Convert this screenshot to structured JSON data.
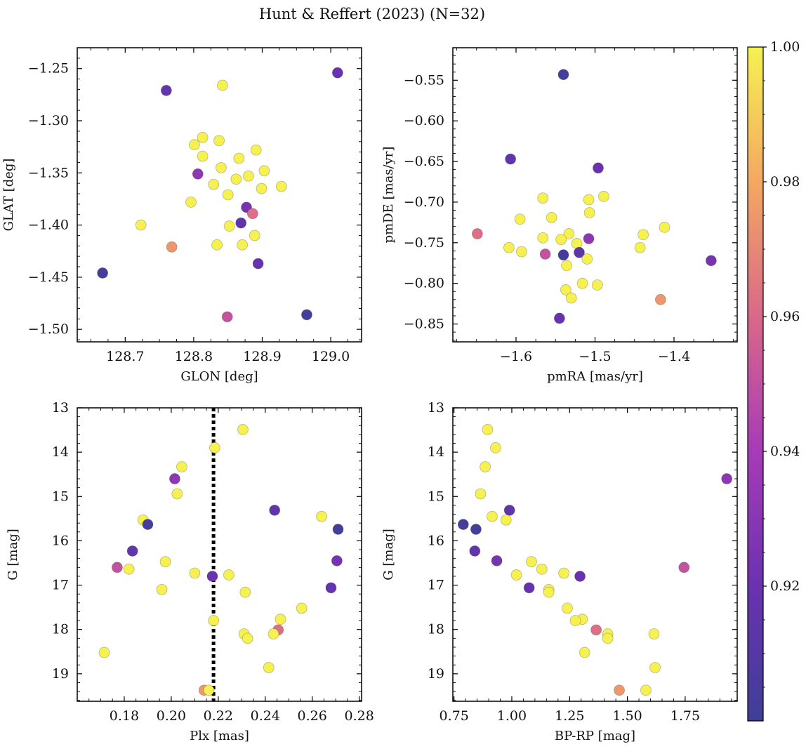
{
  "figure_title": "Hunt & Reffert (2023) (N=32)",
  "chart_data": [
    {
      "type": "scatter",
      "panel": "top-left",
      "xlabel": "GLON [deg]",
      "ylabel": "GLAT [deg]",
      "xlim": [
        128.63,
        129.045
      ],
      "ylim": [
        -1.512,
        -1.23
      ],
      "invert_y": false,
      "xticks": [
        128.7,
        128.8,
        128.9,
        129.0
      ],
      "xticklabels": [
        "128.7",
        "128.8",
        "128.9",
        "129.0"
      ],
      "xminor": [
        128.65,
        128.675,
        128.725,
        128.75,
        128.775,
        128.825,
        128.85,
        128.875,
        128.925,
        128.95,
        128.975,
        129.025
      ],
      "yticks": [
        -1.25,
        -1.3,
        -1.35,
        -1.4,
        -1.45,
        -1.5
      ],
      "yticklabels": [
        "−1.25",
        "−1.30",
        "−1.35",
        "−1.40",
        "−1.45",
        "−1.50"
      ],
      "yminor": [
        -1.24,
        -1.26,
        -1.27,
        -1.28,
        -1.29,
        -1.31,
        -1.32,
        -1.33,
        -1.34,
        -1.36,
        -1.37,
        -1.38,
        -1.39,
        -1.41,
        -1.42,
        -1.43,
        -1.44,
        -1.46,
        -1.47,
        -1.48,
        -1.49,
        -1.51
      ],
      "points": [
        {
          "x": 128.667,
          "y": -1.446,
          "c": 0.902
        },
        {
          "x": 128.76,
          "y": -1.271,
          "c": 0.916
        },
        {
          "x": 129.01,
          "y": -1.254,
          "c": 0.92
        },
        {
          "x": 128.965,
          "y": -1.486,
          "c": 0.903
        },
        {
          "x": 128.723,
          "y": -1.4,
          "c": 1.0
        },
        {
          "x": 128.768,
          "y": -1.421,
          "c": 0.975
        },
        {
          "x": 128.842,
          "y": -1.266,
          "c": 1.0
        },
        {
          "x": 128.813,
          "y": -1.316,
          "c": 1.0
        },
        {
          "x": 128.801,
          "y": -1.323,
          "c": 1.0
        },
        {
          "x": 128.837,
          "y": -1.319,
          "c": 1.0
        },
        {
          "x": 128.813,
          "y": -1.334,
          "c": 1.0
        },
        {
          "x": 128.806,
          "y": -1.351,
          "c": 0.932
        },
        {
          "x": 128.84,
          "y": -1.345,
          "c": 1.0
        },
        {
          "x": 128.866,
          "y": -1.336,
          "c": 1.0
        },
        {
          "x": 128.891,
          "y": -1.328,
          "c": 1.0
        },
        {
          "x": 128.903,
          "y": -1.348,
          "c": 1.0
        },
        {
          "x": 128.88,
          "y": -1.353,
          "c": 1.0
        },
        {
          "x": 128.862,
          "y": -1.356,
          "c": 1.0
        },
        {
          "x": 128.829,
          "y": -1.361,
          "c": 1.0
        },
        {
          "x": 128.899,
          "y": -1.365,
          "c": 1.0
        },
        {
          "x": 128.928,
          "y": -1.363,
          "c": 1.0
        },
        {
          "x": 128.85,
          "y": -1.371,
          "c": 1.0
        },
        {
          "x": 128.796,
          "y": -1.378,
          "c": 1.0
        },
        {
          "x": 128.877,
          "y": -1.383,
          "c": 0.924
        },
        {
          "x": 128.886,
          "y": -1.389,
          "c": 0.962
        },
        {
          "x": 128.869,
          "y": -1.398,
          "c": 0.915
        },
        {
          "x": 128.852,
          "y": -1.401,
          "c": 1.0
        },
        {
          "x": 128.889,
          "y": -1.41,
          "c": 1.0
        },
        {
          "x": 128.834,
          "y": -1.419,
          "c": 1.0
        },
        {
          "x": 128.871,
          "y": -1.419,
          "c": 1.0
        },
        {
          "x": 128.894,
          "y": -1.437,
          "c": 0.918
        },
        {
          "x": 128.849,
          "y": -1.488,
          "c": 0.951
        }
      ]
    },
    {
      "type": "scatter",
      "panel": "top-right",
      "xlabel": "pmRA [mas/yr]",
      "ylabel": "pmDE [mas/yr]",
      "xlim": [
        -1.68,
        -1.32
      ],
      "ylim": [
        -0.872,
        -0.51
      ],
      "invert_y": false,
      "xticks": [
        -1.6,
        -1.5,
        -1.4
      ],
      "xticklabels": [
        "−1.6",
        "−1.5",
        "−1.4"
      ],
      "xminor": [
        -1.675,
        -1.65,
        -1.625,
        -1.575,
        -1.55,
        -1.525,
        -1.475,
        -1.45,
        -1.425,
        -1.375,
        -1.35,
        -1.325
      ],
      "yticks": [
        -0.55,
        -0.6,
        -0.65,
        -0.7,
        -0.75,
        -0.8,
        -0.85
      ],
      "yticklabels": [
        "−0.55",
        "−0.60",
        "−0.65",
        "−0.70",
        "−0.75",
        "−0.80",
        "−0.85"
      ],
      "yminor": [
        -0.52,
        -0.53,
        -0.54,
        -0.56,
        -0.57,
        -0.58,
        -0.59,
        -0.61,
        -0.62,
        -0.63,
        -0.64,
        -0.66,
        -0.67,
        -0.68,
        -0.69,
        -0.71,
        -0.72,
        -0.73,
        -0.74,
        -0.76,
        -0.77,
        -0.78,
        -0.79,
        -0.81,
        -0.82,
        -0.83,
        -0.84,
        -0.86,
        -0.87
      ],
      "points": [
        {
          "x": -1.54,
          "y": -0.543,
          "c": 0.902
        },
        {
          "x": -1.607,
          "y": -0.647,
          "c": 0.916
        },
        {
          "x": -1.496,
          "y": -0.658,
          "c": 0.92
        },
        {
          "x": -1.566,
          "y": -0.695,
          "c": 1.0
        },
        {
          "x": -1.489,
          "y": -0.693,
          "c": 1.0
        },
        {
          "x": -1.508,
          "y": -0.697,
          "c": 1.0
        },
        {
          "x": -1.595,
          "y": -0.721,
          "c": 1.0
        },
        {
          "x": -1.555,
          "y": -0.719,
          "c": 1.0
        },
        {
          "x": -1.507,
          "y": -0.713,
          "c": 1.0
        },
        {
          "x": -1.412,
          "y": -0.731,
          "c": 1.0
        },
        {
          "x": -1.439,
          "y": -0.74,
          "c": 1.0
        },
        {
          "x": -1.649,
          "y": -0.739,
          "c": 0.962
        },
        {
          "x": -1.533,
          "y": -0.739,
          "c": 1.0
        },
        {
          "x": -1.566,
          "y": -0.744,
          "c": 1.0
        },
        {
          "x": -1.543,
          "y": -0.746,
          "c": 1.0
        },
        {
          "x": -1.508,
          "y": -0.745,
          "c": 0.932
        },
        {
          "x": -1.523,
          "y": -0.751,
          "c": 1.0
        },
        {
          "x": -1.609,
          "y": -0.756,
          "c": 1.0
        },
        {
          "x": -1.443,
          "y": -0.756,
          "c": 1.0
        },
        {
          "x": -1.593,
          "y": -0.761,
          "c": 1.0
        },
        {
          "x": -1.52,
          "y": -0.762,
          "c": 0.915
        },
        {
          "x": -1.54,
          "y": -0.765,
          "c": 0.903
        },
        {
          "x": -1.563,
          "y": -0.764,
          "c": 0.951
        },
        {
          "x": -1.51,
          "y": -0.77,
          "c": 1.0
        },
        {
          "x": -1.536,
          "y": -0.778,
          "c": 1.0
        },
        {
          "x": -1.353,
          "y": -0.772,
          "c": 0.924
        },
        {
          "x": -1.516,
          "y": -0.8,
          "c": 1.0
        },
        {
          "x": -1.497,
          "y": -0.802,
          "c": 1.0
        },
        {
          "x": -1.537,
          "y": -0.808,
          "c": 1.0
        },
        {
          "x": -1.53,
          "y": -0.818,
          "c": 1.0
        },
        {
          "x": -1.417,
          "y": -0.82,
          "c": 0.975
        },
        {
          "x": -1.545,
          "y": -0.843,
          "c": 0.918
        }
      ]
    },
    {
      "type": "scatter",
      "panel": "bottom-left",
      "xlabel": "Plx [mas]",
      "ylabel": "G [mag]",
      "xlim": [
        0.16,
        0.281
      ],
      "ylim": [
        19.62,
        13.0
      ],
      "invert_y": true,
      "xticks": [
        0.18,
        0.2,
        0.22,
        0.24,
        0.26,
        0.28
      ],
      "xticklabels": [
        "0.18",
        "0.20",
        "0.22",
        "0.24",
        "0.26",
        "0.28"
      ],
      "xminor": [
        0.165,
        0.17,
        0.175,
        0.185,
        0.19,
        0.195,
        0.205,
        0.21,
        0.215,
        0.225,
        0.23,
        0.235,
        0.245,
        0.25,
        0.255,
        0.265,
        0.27,
        0.275
      ],
      "yticks": [
        13,
        14,
        15,
        16,
        17,
        18,
        19
      ],
      "yticklabels": [
        "13",
        "14",
        "15",
        "16",
        "17",
        "18",
        "19"
      ],
      "yminor": [
        13.2,
        13.4,
        13.6,
        13.8,
        14.2,
        14.4,
        14.6,
        14.8,
        15.2,
        15.4,
        15.6,
        15.8,
        16.2,
        16.4,
        16.6,
        16.8,
        17.2,
        17.4,
        17.6,
        17.8,
        18.2,
        18.4,
        18.6,
        18.8,
        19.2,
        19.4,
        19.6
      ],
      "vline": {
        "x": 0.218,
        "style": "dotted"
      },
      "points": [
        {
          "x": 0.2305,
          "y": 13.49,
          "c": 1.0
        },
        {
          "x": 0.2185,
          "y": 13.9,
          "c": 1.0
        },
        {
          "x": 0.2045,
          "y": 14.33,
          "c": 1.0
        },
        {
          "x": 0.2015,
          "y": 14.6,
          "c": 0.932
        },
        {
          "x": 0.2025,
          "y": 14.94,
          "c": 1.0
        },
        {
          "x": 0.244,
          "y": 15.31,
          "c": 0.915
        },
        {
          "x": 0.264,
          "y": 15.45,
          "c": 1.0
        },
        {
          "x": 0.188,
          "y": 15.53,
          "c": 1.0
        },
        {
          "x": 0.19,
          "y": 15.63,
          "c": 0.903
        },
        {
          "x": 0.271,
          "y": 15.74,
          "c": 0.902
        },
        {
          "x": 0.1835,
          "y": 16.23,
          "c": 0.916
        },
        {
          "x": 0.2705,
          "y": 16.45,
          "c": 0.924
        },
        {
          "x": 0.1975,
          "y": 16.47,
          "c": 1.0
        },
        {
          "x": 0.177,
          "y": 16.6,
          "c": 0.951
        },
        {
          "x": 0.182,
          "y": 16.64,
          "c": 1.0
        },
        {
          "x": 0.21,
          "y": 16.73,
          "c": 1.0
        },
        {
          "x": 0.2245,
          "y": 16.77,
          "c": 1.0
        },
        {
          "x": 0.2175,
          "y": 16.8,
          "c": 0.92
        },
        {
          "x": 0.268,
          "y": 17.06,
          "c": 0.918
        },
        {
          "x": 0.196,
          "y": 17.1,
          "c": 1.0
        },
        {
          "x": 0.2315,
          "y": 17.16,
          "c": 1.0
        },
        {
          "x": 0.2555,
          "y": 17.52,
          "c": 1.0
        },
        {
          "x": 0.2465,
          "y": 17.77,
          "c": 1.0
        },
        {
          "x": 0.218,
          "y": 17.8,
          "c": 1.0
        },
        {
          "x": 0.2455,
          "y": 18.01,
          "c": 0.962
        },
        {
          "x": 0.231,
          "y": 18.1,
          "c": 1.0
        },
        {
          "x": 0.2435,
          "y": 18.1,
          "c": 1.0
        },
        {
          "x": 0.2325,
          "y": 18.2,
          "c": 1.0
        },
        {
          "x": 0.1715,
          "y": 18.52,
          "c": 1.0
        },
        {
          "x": 0.2415,
          "y": 18.86,
          "c": 1.0
        },
        {
          "x": 0.214,
          "y": 19.37,
          "c": 0.975
        },
        {
          "x": 0.216,
          "y": 19.37,
          "c": 1.0
        }
      ]
    },
    {
      "type": "scatter",
      "panel": "bottom-right",
      "xlabel": "BP-RP [mag]",
      "ylabel": "G [mag]",
      "xlim": [
        0.745,
        1.975
      ],
      "ylim": [
        19.62,
        13.0
      ],
      "invert_y": true,
      "xticks": [
        0.75,
        1.0,
        1.25,
        1.5,
        1.75
      ],
      "xticklabels": [
        "0.75",
        "1.00",
        "1.25",
        "1.50",
        "1.75"
      ],
      "xminor": [
        0.8,
        0.85,
        0.9,
        0.95,
        1.05,
        1.1,
        1.15,
        1.2,
        1.3,
        1.35,
        1.4,
        1.45,
        1.55,
        1.6,
        1.65,
        1.7,
        1.8,
        1.85,
        1.9,
        1.95
      ],
      "yticks": [
        13,
        14,
        15,
        16,
        17,
        18,
        19
      ],
      "yticklabels": [
        "13",
        "14",
        "15",
        "16",
        "17",
        "18",
        "19"
      ],
      "yminor": [
        13.2,
        13.4,
        13.6,
        13.8,
        14.2,
        14.4,
        14.6,
        14.8,
        15.2,
        15.4,
        15.6,
        15.8,
        16.2,
        16.4,
        16.6,
        16.8,
        17.2,
        17.4,
        17.6,
        17.8,
        18.2,
        18.4,
        18.6,
        18.8,
        19.2,
        19.4,
        19.6
      ],
      "points": [
        {
          "x": 0.895,
          "y": 13.49,
          "c": 1.0
        },
        {
          "x": 0.93,
          "y": 13.9,
          "c": 1.0
        },
        {
          "x": 0.885,
          "y": 14.33,
          "c": 1.0
        },
        {
          "x": 1.93,
          "y": 14.6,
          "c": 0.932
        },
        {
          "x": 0.865,
          "y": 14.94,
          "c": 1.0
        },
        {
          "x": 0.99,
          "y": 15.31,
          "c": 0.915
        },
        {
          "x": 0.915,
          "y": 15.45,
          "c": 1.0
        },
        {
          "x": 0.975,
          "y": 15.53,
          "c": 1.0
        },
        {
          "x": 0.79,
          "y": 15.63,
          "c": 0.903
        },
        {
          "x": 0.845,
          "y": 15.74,
          "c": 0.902
        },
        {
          "x": 0.84,
          "y": 16.23,
          "c": 0.916
        },
        {
          "x": 0.935,
          "y": 16.45,
          "c": 0.924
        },
        {
          "x": 1.085,
          "y": 16.47,
          "c": 1.0
        },
        {
          "x": 1.745,
          "y": 16.6,
          "c": 0.951
        },
        {
          "x": 1.13,
          "y": 16.64,
          "c": 1.0
        },
        {
          "x": 1.225,
          "y": 16.73,
          "c": 1.0
        },
        {
          "x": 1.02,
          "y": 16.77,
          "c": 1.0
        },
        {
          "x": 1.295,
          "y": 16.8,
          "c": 0.92
        },
        {
          "x": 1.075,
          "y": 17.06,
          "c": 0.918
        },
        {
          "x": 1.16,
          "y": 17.1,
          "c": 1.0
        },
        {
          "x": 1.16,
          "y": 17.16,
          "c": 1.0
        },
        {
          "x": 1.24,
          "y": 17.52,
          "c": 1.0
        },
        {
          "x": 1.305,
          "y": 17.77,
          "c": 1.0
        },
        {
          "x": 1.275,
          "y": 17.8,
          "c": 1.0
        },
        {
          "x": 1.365,
          "y": 18.01,
          "c": 0.962
        },
        {
          "x": 1.415,
          "y": 18.1,
          "c": 1.0
        },
        {
          "x": 1.615,
          "y": 18.1,
          "c": 1.0
        },
        {
          "x": 1.415,
          "y": 18.2,
          "c": 1.0
        },
        {
          "x": 1.315,
          "y": 18.52,
          "c": 1.0
        },
        {
          "x": 1.62,
          "y": 18.86,
          "c": 1.0
        },
        {
          "x": 1.465,
          "y": 19.37,
          "c": 0.975
        },
        {
          "x": 1.58,
          "y": 19.37,
          "c": 1.0
        }
      ]
    }
  ],
  "colorbar": {
    "colormap": "plasma",
    "range": [
      0.9,
      1.0
    ],
    "ticks": [
      0.92,
      0.94,
      0.96,
      0.98,
      1.0
    ],
    "ticklabels": [
      "0.92",
      "0.94",
      "0.96",
      "0.98",
      "1.00"
    ],
    "minor": [
      0.905,
      0.91,
      0.915,
      0.925,
      0.93,
      0.935,
      0.945,
      0.95,
      0.955,
      0.965,
      0.97,
      0.975,
      0.985,
      0.99,
      0.995
    ]
  }
}
